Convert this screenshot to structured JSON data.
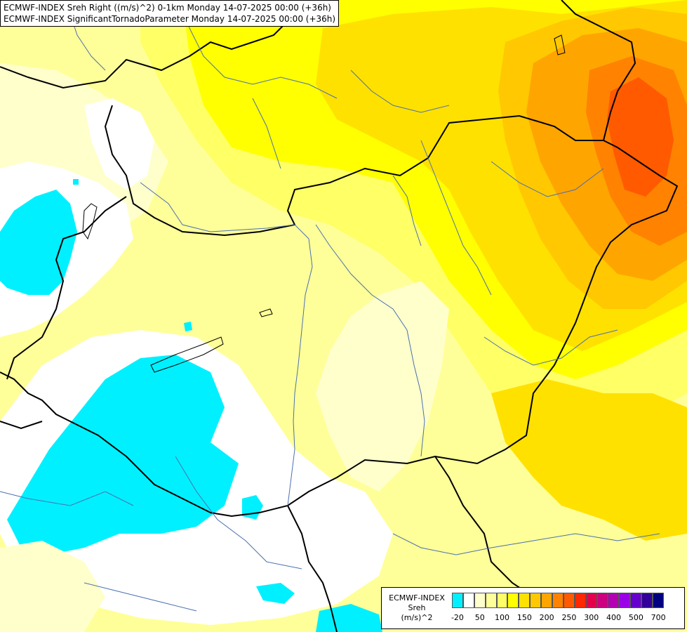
{
  "title": {
    "line1": "ECMWF-INDEX Sreh Right ((m/s)^2) 0-1km Monday 14-07-2025 00:00 (+36h)",
    "line2": "ECMWF-INDEX SignificantTornadoParameter Monday 14-07-2025 00:00 (+36h)"
  },
  "legend": {
    "title_lines": [
      "ECMWF-INDEX",
      "Sreh",
      "(m/s)^2"
    ],
    "colors": [
      "#00f0ff",
      "#ffffff",
      "#ffffcc",
      "#ffff99",
      "#ffff66",
      "#ffff00",
      "#ffe100",
      "#ffc800",
      "#ffa500",
      "#ff8200",
      "#ff5a00",
      "#ff2800",
      "#e6004c",
      "#cc0080",
      "#b300b3",
      "#9900e6",
      "#6600cc",
      "#330099",
      "#000080"
    ],
    "tick_labels": [
      "-20",
      "50",
      "100",
      "150",
      "200",
      "250",
      "300",
      "400",
      "500",
      "700"
    ]
  },
  "field_colors": {
    "white": "#ffffff",
    "cyan": "#00f0ff",
    "pale": "#ffffcc",
    "light": "#ffff99",
    "mid": "#ffff66",
    "yellow": "#ffff00",
    "gold": "#ffe100",
    "amber": "#ffc800",
    "orange": "#ffa500",
    "dark_orange": "#ff8200",
    "red_orange": "#ff5a00"
  }
}
